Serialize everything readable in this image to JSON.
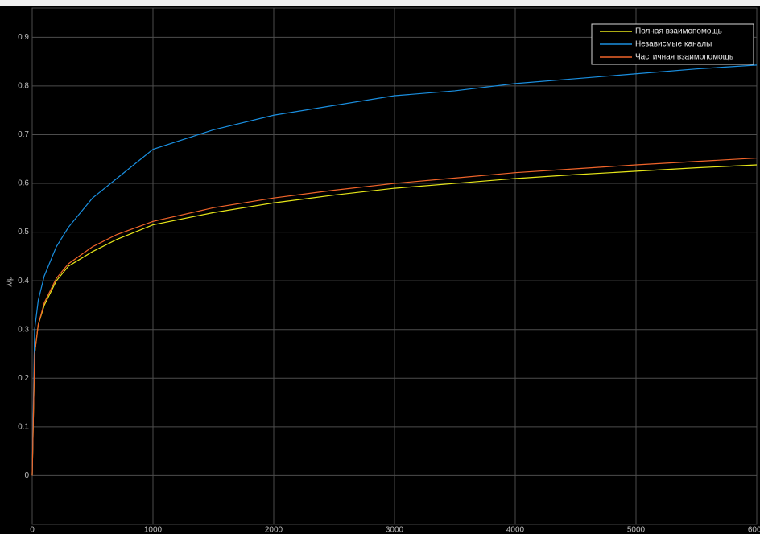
{
  "chart_data": {
    "type": "line",
    "y_label": "λ/μ",
    "x": [
      0,
      20,
      50,
      100,
      200,
      300,
      500,
      700,
      1000,
      1500,
      2000,
      2500,
      3000,
      3500,
      4000,
      4500,
      5000,
      5500,
      6000
    ],
    "series": [
      {
        "name": "Полная взаимопомощь",
        "color": "#e6e619",
        "values": [
          0,
          0.25,
          0.31,
          0.35,
          0.4,
          0.43,
          0.46,
          0.485,
          0.515,
          0.54,
          0.56,
          0.576,
          0.59,
          0.6,
          0.61,
          0.618,
          0.625,
          0.632,
          0.638
        ]
      },
      {
        "name": "Независмые каналы",
        "color": "#1a8fe0",
        "values": [
          0,
          0.3,
          0.36,
          0.41,
          0.47,
          0.51,
          0.57,
          0.61,
          0.67,
          0.71,
          0.74,
          0.76,
          0.78,
          0.79,
          0.805,
          0.815,
          0.825,
          0.835,
          0.843
        ]
      },
      {
        "name": "Частичная взаимопомощь",
        "color": "#f0642a",
        "values": [
          0,
          0.25,
          0.31,
          0.355,
          0.405,
          0.435,
          0.47,
          0.495,
          0.522,
          0.55,
          0.57,
          0.586,
          0.6,
          0.611,
          0.622,
          0.63,
          0.638,
          0.645,
          0.652
        ]
      }
    ],
    "xlim": [
      0,
      6000
    ],
    "xticks": [
      0,
      1000,
      2000,
      3000,
      4000,
      5000,
      6000
    ],
    "ylim": [
      -0.1,
      0.96
    ],
    "yticks": [
      0,
      0.1,
      0.2,
      0.3,
      0.4,
      0.5,
      0.6,
      0.7,
      0.8,
      0.9
    ],
    "grid": true,
    "legend": "upper-right"
  }
}
